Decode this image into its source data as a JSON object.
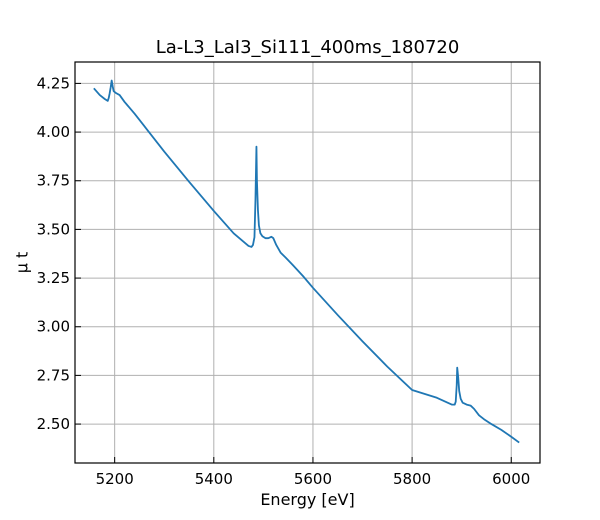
{
  "chart_data": {
    "type": "line",
    "title": "La-L3_LaI3_Si111_400ms_180720",
    "xlabel": "Energy [eV]",
    "ylabel": "μ t",
    "xlim": [
      5120,
      6058
    ],
    "ylim": [
      2.3,
      4.36
    ],
    "grid": true,
    "x_ticks": [
      {
        "value": 5200,
        "label": "5200"
      },
      {
        "value": 5400,
        "label": "5400"
      },
      {
        "value": 5600,
        "label": "5600"
      },
      {
        "value": 5800,
        "label": "5800"
      },
      {
        "value": 6000,
        "label": "6000"
      }
    ],
    "y_ticks": [
      {
        "value": 2.5,
        "label": "2.50"
      },
      {
        "value": 2.75,
        "label": "2.75"
      },
      {
        "value": 3.0,
        "label": "3.00"
      },
      {
        "value": 3.25,
        "label": "3.25"
      },
      {
        "value": 3.5,
        "label": "3.50"
      },
      {
        "value": 3.75,
        "label": "3.75"
      },
      {
        "value": 4.0,
        "label": "4.00"
      },
      {
        "value": 4.25,
        "label": "4.25"
      }
    ],
    "series": [
      {
        "color": "#1f77b4",
        "x": [
          5158,
          5170,
          5180,
          5186,
          5188,
          5190,
          5192,
          5194,
          5196,
          5198,
          5203,
          5210,
          5220,
          5240,
          5260,
          5300,
          5350,
          5400,
          5440,
          5470,
          5476,
          5479,
          5482,
          5484,
          5486,
          5487,
          5489,
          5491,
          5494,
          5498,
          5504,
          5510,
          5516,
          5520,
          5526,
          5535,
          5545,
          5560,
          5580,
          5600,
          5650,
          5700,
          5750,
          5800,
          5850,
          5880,
          5886,
          5888,
          5890,
          5891,
          5893,
          5895,
          5898,
          5902,
          5910,
          5918,
          5925,
          5935,
          5945,
          5960,
          5980,
          6000,
          6016
        ],
        "y": [
          4.225,
          4.19,
          4.17,
          4.16,
          4.175,
          4.2,
          4.23,
          4.265,
          4.235,
          4.21,
          4.2,
          4.19,
          4.155,
          4.095,
          4.03,
          3.9,
          3.745,
          3.595,
          3.48,
          3.415,
          3.41,
          3.42,
          3.46,
          3.65,
          3.925,
          3.75,
          3.6,
          3.52,
          3.48,
          3.465,
          3.455,
          3.455,
          3.462,
          3.455,
          3.42,
          3.38,
          3.355,
          3.315,
          3.26,
          3.2,
          3.06,
          2.925,
          2.795,
          2.675,
          2.635,
          2.6,
          2.6,
          2.615,
          2.7,
          2.79,
          2.74,
          2.67,
          2.63,
          2.61,
          2.6,
          2.595,
          2.578,
          2.545,
          2.525,
          2.5,
          2.47,
          2.435,
          2.405
        ]
      }
    ]
  }
}
